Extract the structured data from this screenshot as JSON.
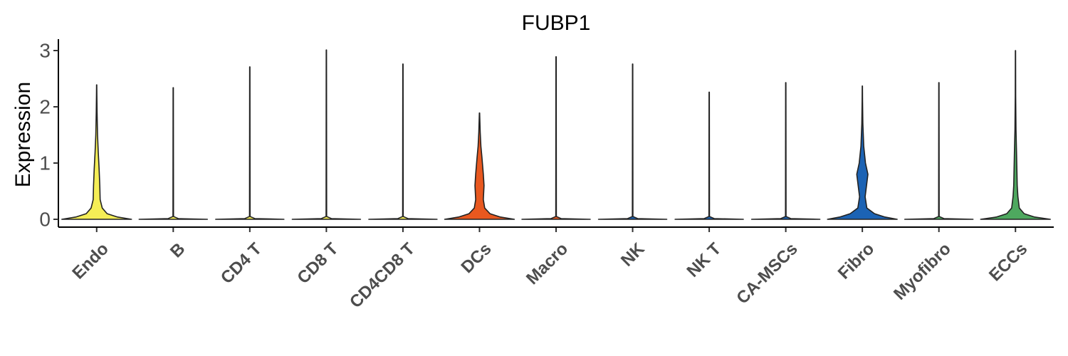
{
  "chart_data": {
    "type": "violin",
    "title": "FUBP1",
    "xlabel": "",
    "ylabel": "Expression",
    "ylim": [
      0,
      3.15
    ],
    "yticks": [
      0,
      1,
      2,
      3
    ],
    "categories": [
      "Endo",
      "B",
      "CD4 T",
      "CD8 T",
      "CD4CD8 T",
      "DCs",
      "Macro",
      "NK",
      "NK T",
      "CA-MSCs",
      "Fibro",
      "Myofibro",
      "ECCs"
    ],
    "colors": [
      "#F5EE56",
      "#F5EE56",
      "#F5EE56",
      "#F5EE56",
      "#F5EE56",
      "#E8581F",
      "#E8581F",
      "#1C63B4",
      "#1C63B4",
      "#1C63B4",
      "#1C63B4",
      "#4EA85F",
      "#4EA85F"
    ],
    "max_values": [
      2.39,
      2.34,
      2.71,
      3.01,
      2.76,
      1.89,
      2.89,
      2.76,
      2.26,
      2.43,
      2.37,
      2.43,
      3.0
    ],
    "density_profiles": [
      [
        [
          0,
          1.0
        ],
        [
          0.04,
          0.6
        ],
        [
          0.1,
          0.3
        ],
        [
          0.2,
          0.16
        ],
        [
          0.35,
          0.1
        ],
        [
          0.6,
          0.09
        ],
        [
          0.9,
          0.07
        ],
        [
          1.2,
          0.045
        ],
        [
          1.5,
          0.025
        ],
        [
          1.9,
          0.012
        ],
        [
          2.2,
          0.006
        ],
        [
          2.39,
          0.003
        ]
      ],
      [
        [
          0,
          0.98
        ],
        [
          0.012,
          0.15
        ],
        [
          0.05,
          0.008
        ],
        [
          2.34,
          0.004
        ]
      ],
      [
        [
          0,
          0.98
        ],
        [
          0.012,
          0.15
        ],
        [
          0.05,
          0.008
        ],
        [
          2.71,
          0.004
        ]
      ],
      [
        [
          0,
          0.98
        ],
        [
          0.012,
          0.15
        ],
        [
          0.05,
          0.008
        ],
        [
          3.01,
          0.004
        ]
      ],
      [
        [
          0,
          0.98
        ],
        [
          0.012,
          0.15
        ],
        [
          0.05,
          0.008
        ],
        [
          2.76,
          0.004
        ]
      ],
      [
        [
          0,
          1.0
        ],
        [
          0.04,
          0.6
        ],
        [
          0.1,
          0.3
        ],
        [
          0.2,
          0.15
        ],
        [
          0.35,
          0.11
        ],
        [
          0.6,
          0.13
        ],
        [
          0.8,
          0.11
        ],
        [
          1.1,
          0.07
        ],
        [
          1.3,
          0.04
        ],
        [
          1.55,
          0.02
        ],
        [
          1.89,
          0.004
        ]
      ],
      [
        [
          0,
          0.98
        ],
        [
          0.012,
          0.15
        ],
        [
          0.05,
          0.008
        ],
        [
          2.89,
          0.004
        ]
      ],
      [
        [
          0,
          0.98
        ],
        [
          0.012,
          0.15
        ],
        [
          0.05,
          0.008
        ],
        [
          2.76,
          0.004
        ]
      ],
      [
        [
          0,
          0.98
        ],
        [
          0.012,
          0.15
        ],
        [
          0.05,
          0.008
        ],
        [
          2.26,
          0.004
        ]
      ],
      [
        [
          0,
          0.98
        ],
        [
          0.012,
          0.15
        ],
        [
          0.05,
          0.008
        ],
        [
          2.43,
          0.004
        ]
      ],
      [
        [
          0,
          1.0
        ],
        [
          0.04,
          0.65
        ],
        [
          0.1,
          0.35
        ],
        [
          0.2,
          0.13
        ],
        [
          0.4,
          0.08
        ],
        [
          0.6,
          0.12
        ],
        [
          0.8,
          0.16
        ],
        [
          1.0,
          0.09
        ],
        [
          1.3,
          0.04
        ],
        [
          1.7,
          0.015
        ],
        [
          2.1,
          0.006
        ],
        [
          2.37,
          0.003
        ]
      ],
      [
        [
          0,
          0.98
        ],
        [
          0.012,
          0.15
        ],
        [
          0.05,
          0.008
        ],
        [
          2.43,
          0.004
        ]
      ],
      [
        [
          0,
          1.0
        ],
        [
          0.04,
          0.55
        ],
        [
          0.1,
          0.25
        ],
        [
          0.2,
          0.11
        ],
        [
          0.4,
          0.07
        ],
        [
          0.6,
          0.05
        ],
        [
          0.9,
          0.04
        ],
        [
          1.2,
          0.03
        ],
        [
          1.6,
          0.015
        ],
        [
          2.2,
          0.006
        ],
        [
          3.0,
          0.003
        ]
      ]
    ]
  }
}
